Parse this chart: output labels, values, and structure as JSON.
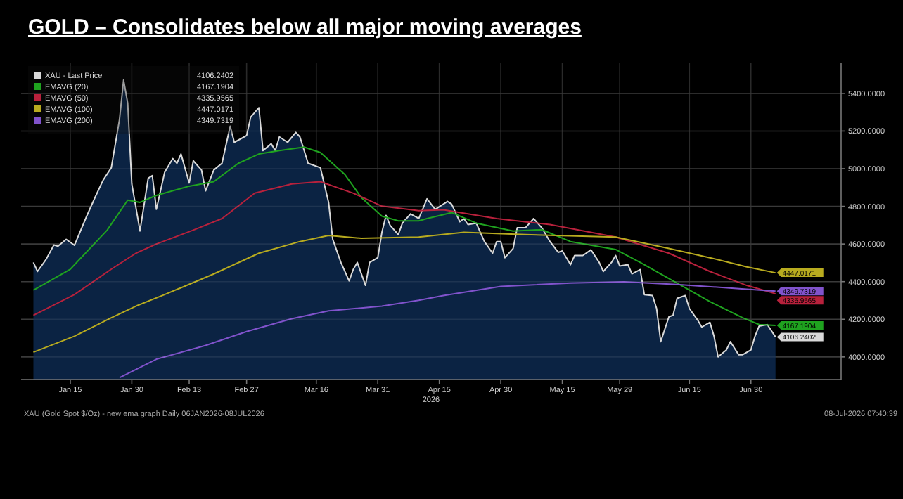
{
  "chart_data": {
    "type": "line",
    "title": "GOLD – Consolidates below all major moving averages",
    "xlabel": "2026",
    "annotations": [
      "XAU (Gold Spot $/Oz) - new ema graph Daily 06JAN2026-08JUL2026",
      "08-Jul-2026 07:40:39"
    ],
    "xlim": [
      "2026-01-03",
      "2026-07-22"
    ],
    "xticks": [
      {
        "value": "2026-01-15",
        "label": "Jan 15"
      },
      {
        "value": "2026-01-30",
        "label": "Jan 30"
      },
      {
        "value": "2026-02-13",
        "label": "Feb 13"
      },
      {
        "value": "2026-02-27",
        "label": "Feb 27"
      },
      {
        "value": "2026-03-16",
        "label": "Mar 16"
      },
      {
        "value": "2026-03-31",
        "label": "Mar 31"
      },
      {
        "value": "2026-04-15",
        "label": "Apr 15"
      },
      {
        "value": "2026-04-30",
        "label": "Apr 30"
      },
      {
        "value": "2026-05-15",
        "label": "May 15"
      },
      {
        "value": "2026-05-29",
        "label": "May 29"
      },
      {
        "value": "2026-06-15",
        "label": "Jun 15"
      },
      {
        "value": "2026-06-30",
        "label": "Jun 30"
      }
    ],
    "ylim": [
      3880,
      5560
    ],
    "yticks": [
      {
        "value": 4000,
        "label": "4000.0000"
      },
      {
        "value": 4200,
        "label": "4200.0000"
      },
      {
        "value": 4400,
        "label": "4400.0000"
      },
      {
        "value": 4600,
        "label": "4600.0000"
      },
      {
        "value": 4800,
        "label": "4800.0000"
      },
      {
        "value": 5000,
        "label": "5000.0000"
      },
      {
        "value": 5200,
        "label": "5200.0000"
      },
      {
        "value": 5400,
        "label": "5400.0000"
      }
    ],
    "grid": true,
    "legend": "top left",
    "marker": "none",
    "line_style": "solid",
    "series": [
      {
        "name": "XAU - Last Price",
        "type": "area",
        "color": "#d9d9d9",
        "x": [
          "2026-01-06",
          "2026-01-07",
          "2026-01-09",
          "2026-01-11",
          "2026-01-12",
          "2026-01-14",
          "2026-01-16",
          "2026-01-19",
          "2026-01-21",
          "2026-01-23",
          "2026-01-25",
          "2026-01-27",
          "2026-01-28",
          "2026-01-29",
          "2026-01-30",
          "2026-02-01",
          "2026-02-03",
          "2026-02-04",
          "2026-02-05",
          "2026-02-07",
          "2026-02-09",
          "2026-02-10",
          "2026-02-11",
          "2026-02-13",
          "2026-02-14",
          "2026-02-16",
          "2026-02-17",
          "2026-02-19",
          "2026-02-21",
          "2026-02-23",
          "2026-02-24",
          "2026-02-27",
          "2026-02-28",
          "2026-03-02",
          "2026-03-03",
          "2026-03-05",
          "2026-03-06",
          "2026-03-07",
          "2026-03-09",
          "2026-03-11",
          "2026-03-12",
          "2026-03-14",
          "2026-03-17",
          "2026-03-19",
          "2026-03-20",
          "2026-03-22",
          "2026-03-24",
          "2026-03-25",
          "2026-03-26",
          "2026-03-28",
          "2026-03-29",
          "2026-03-31",
          "2026-04-01",
          "2026-04-02",
          "2026-04-03",
          "2026-04-05",
          "2026-04-06",
          "2026-04-08",
          "2026-04-10",
          "2026-04-12",
          "2026-04-14",
          "2026-04-17",
          "2026-04-18",
          "2026-04-20",
          "2026-04-21",
          "2026-04-22",
          "2026-04-24",
          "2026-04-26",
          "2026-04-28",
          "2026-04-29",
          "2026-04-30",
          "2026-05-01",
          "2026-05-03",
          "2026-05-04",
          "2026-05-06",
          "2026-05-08",
          "2026-05-10",
          "2026-05-12",
          "2026-05-14",
          "2026-05-15",
          "2026-05-17",
          "2026-05-18",
          "2026-05-20",
          "2026-05-22",
          "2026-05-24",
          "2026-05-25",
          "2026-05-27",
          "2026-05-28",
          "2026-05-29",
          "2026-05-31",
          "2026-06-01",
          "2026-06-03",
          "2026-06-04",
          "2026-06-06",
          "2026-06-07",
          "2026-06-08",
          "2026-06-10",
          "2026-06-11",
          "2026-06-12",
          "2026-06-14",
          "2026-06-15",
          "2026-06-17",
          "2026-06-18",
          "2026-06-20",
          "2026-06-21",
          "2026-06-22",
          "2026-06-24",
          "2026-06-25",
          "2026-06-27",
          "2026-06-28",
          "2026-06-30",
          "2026-07-01",
          "2026-07-02",
          "2026-07-04",
          "2026-07-06"
        ],
        "values": [
          4502,
          4454,
          4515,
          4595,
          4588,
          4625,
          4593,
          4748,
          4846,
          4939,
          5005,
          5262,
          5471,
          5348,
          4919,
          4669,
          4949,
          4963,
          4784,
          4980,
          5054,
          5029,
          5078,
          4924,
          5042,
          4993,
          4882,
          4993,
          5029,
          5226,
          5140,
          5176,
          5274,
          5324,
          5096,
          5132,
          5096,
          5169,
          5140,
          5193,
          5169,
          5029,
          5005,
          4821,
          4625,
          4502,
          4404,
          4464,
          4502,
          4380,
          4502,
          4527,
          4662,
          4752,
          4699,
          4650,
          4711,
          4760,
          4735,
          4840,
          4784,
          4826,
          4812,
          4718,
          4735,
          4703,
          4711,
          4613,
          4551,
          4613,
          4613,
          4527,
          4576,
          4686,
          4686,
          4735,
          4686,
          4613,
          4556,
          4563,
          4490,
          4539,
          4539,
          4569,
          4502,
          4454,
          4502,
          4539,
          4483,
          4490,
          4441,
          4464,
          4331,
          4326,
          4257,
          4081,
          4213,
          4221,
          4311,
          4326,
          4257,
          4196,
          4159,
          4184,
          4110,
          4000,
          4037,
          4081,
          4012,
          4012,
          4037,
          4110,
          4164,
          4172,
          4106.2402
        ],
        "value_labels": [
          null,
          null,
          null,
          null,
          null,
          null,
          null,
          null,
          null,
          null,
          null,
          null,
          null,
          null,
          null,
          null,
          null,
          null,
          null,
          null,
          null,
          null,
          null,
          null,
          null,
          null,
          null,
          null,
          null,
          null,
          null,
          null,
          null,
          null,
          null,
          null,
          null,
          null,
          null,
          null,
          null,
          null,
          null,
          null,
          null,
          null,
          null,
          null,
          null,
          null,
          null,
          null,
          null,
          null,
          null,
          null,
          null,
          null,
          null,
          null,
          null,
          null,
          null,
          null,
          null,
          null,
          null,
          null,
          null,
          null,
          null,
          null,
          null,
          null,
          null,
          null,
          null,
          null,
          null,
          null,
          null,
          null,
          null,
          null,
          null,
          null,
          null,
          null,
          null,
          null,
          null,
          null,
          null,
          null,
          null,
          null,
          null,
          null,
          null,
          null,
          null,
          null,
          null,
          null,
          null,
          null,
          null,
          null,
          null,
          null,
          null,
          null,
          null,
          null,
          "4106.2402"
        ]
      },
      {
        "name": "EMAVG (20)",
        "type": "line",
        "color": "#1fa31f",
        "x": [
          "2026-01-06",
          "2026-01-15",
          "2026-01-24",
          "2026-01-29",
          "2026-02-01",
          "2026-02-05",
          "2026-02-13",
          "2026-02-19",
          "2026-02-25",
          "2026-03-02",
          "2026-03-07",
          "2026-03-13",
          "2026-03-17",
          "2026-03-23",
          "2026-03-27",
          "2026-04-01",
          "2026-04-05",
          "2026-04-10",
          "2026-04-12",
          "2026-04-18",
          "2026-04-24",
          "2026-05-03",
          "2026-05-10",
          "2026-05-17",
          "2026-05-28",
          "2026-06-03",
          "2026-06-12",
          "2026-06-20",
          "2026-06-28",
          "2026-07-02",
          "2026-07-06"
        ],
        "values": [
          4355,
          4466,
          4674,
          4833,
          4821,
          4858,
          4907,
          4931,
          5029,
          5078,
          5096,
          5115,
          5086,
          4968,
          4846,
          4748,
          4723,
          4723,
          4735,
          4767,
          4711,
          4669,
          4676,
          4613,
          4571,
          4502,
          4392,
          4294,
          4208,
          4172,
          4167.1904
        ],
        "value_labels": [
          null,
          null,
          null,
          null,
          null,
          null,
          null,
          null,
          null,
          null,
          null,
          null,
          null,
          null,
          null,
          null,
          null,
          null,
          null,
          null,
          null,
          null,
          null,
          null,
          null,
          null,
          null,
          null,
          null,
          null,
          "4167.1904"
        ]
      },
      {
        "name": "EMAVG (50)",
        "type": "line",
        "color": "#b8213c",
        "x": [
          "2026-01-06",
          "2026-01-16",
          "2026-01-25",
          "2026-01-31",
          "2026-02-05",
          "2026-02-14",
          "2026-02-21",
          "2026-03-01",
          "2026-03-10",
          "2026-03-17",
          "2026-03-25",
          "2026-04-01",
          "2026-04-10",
          "2026-04-16",
          "2026-04-29",
          "2026-05-12",
          "2026-05-28",
          "2026-06-10",
          "2026-06-20",
          "2026-06-29",
          "2026-07-06"
        ],
        "values": [
          4221,
          4331,
          4466,
          4551,
          4600,
          4674,
          4735,
          4870,
          4919,
          4931,
          4870,
          4801,
          4777,
          4782,
          4735,
          4703,
          4637,
          4551,
          4454,
          4380,
          4335.9565
        ],
        "value_labels": [
          null,
          null,
          null,
          null,
          null,
          null,
          null,
          null,
          null,
          null,
          null,
          null,
          null,
          null,
          null,
          null,
          null,
          null,
          null,
          null,
          "4335.9565"
        ]
      },
      {
        "name": "EMAVG (100)",
        "type": "line",
        "color": "#b8ab1f",
        "x": [
          "2026-01-06",
          "2026-01-16",
          "2026-01-25",
          "2026-01-31",
          "2026-02-07",
          "2026-02-19",
          "2026-03-02",
          "2026-03-12",
          "2026-03-19",
          "2026-03-27",
          "2026-04-10",
          "2026-04-21",
          "2026-05-06",
          "2026-05-28",
          "2026-06-10",
          "2026-06-20",
          "2026-06-29",
          "2026-07-06"
        ],
        "values": [
          4025,
          4110,
          4208,
          4270,
          4331,
          4441,
          4551,
          4613,
          4645,
          4630,
          4637,
          4662,
          4650,
          4637,
          4576,
          4527,
          4478,
          4447.0171
        ],
        "value_labels": [
          null,
          null,
          null,
          null,
          null,
          null,
          null,
          null,
          null,
          null,
          null,
          null,
          null,
          null,
          null,
          null,
          null,
          "4447.0171"
        ]
      },
      {
        "name": "EMAVG (200)",
        "type": "line",
        "color": "#8153cc",
        "x": [
          "2026-01-27",
          "2026-02-05",
          "2026-02-17",
          "2026-02-27",
          "2026-03-10",
          "2026-03-19",
          "2026-04-01",
          "2026-04-10",
          "2026-04-16",
          "2026-04-30",
          "2026-05-17",
          "2026-05-30",
          "2026-06-12",
          "2026-06-29",
          "2026-07-06"
        ],
        "values": [
          3890,
          3988,
          4061,
          4135,
          4203,
          4245,
          4270,
          4301,
          4326,
          4375,
          4392,
          4399,
          4385,
          4360,
          4349.7319
        ],
        "value_labels": [
          null,
          null,
          null,
          null,
          null,
          null,
          null,
          null,
          null,
          null,
          null,
          null,
          null,
          null,
          "4349.7319"
        ]
      }
    ]
  }
}
